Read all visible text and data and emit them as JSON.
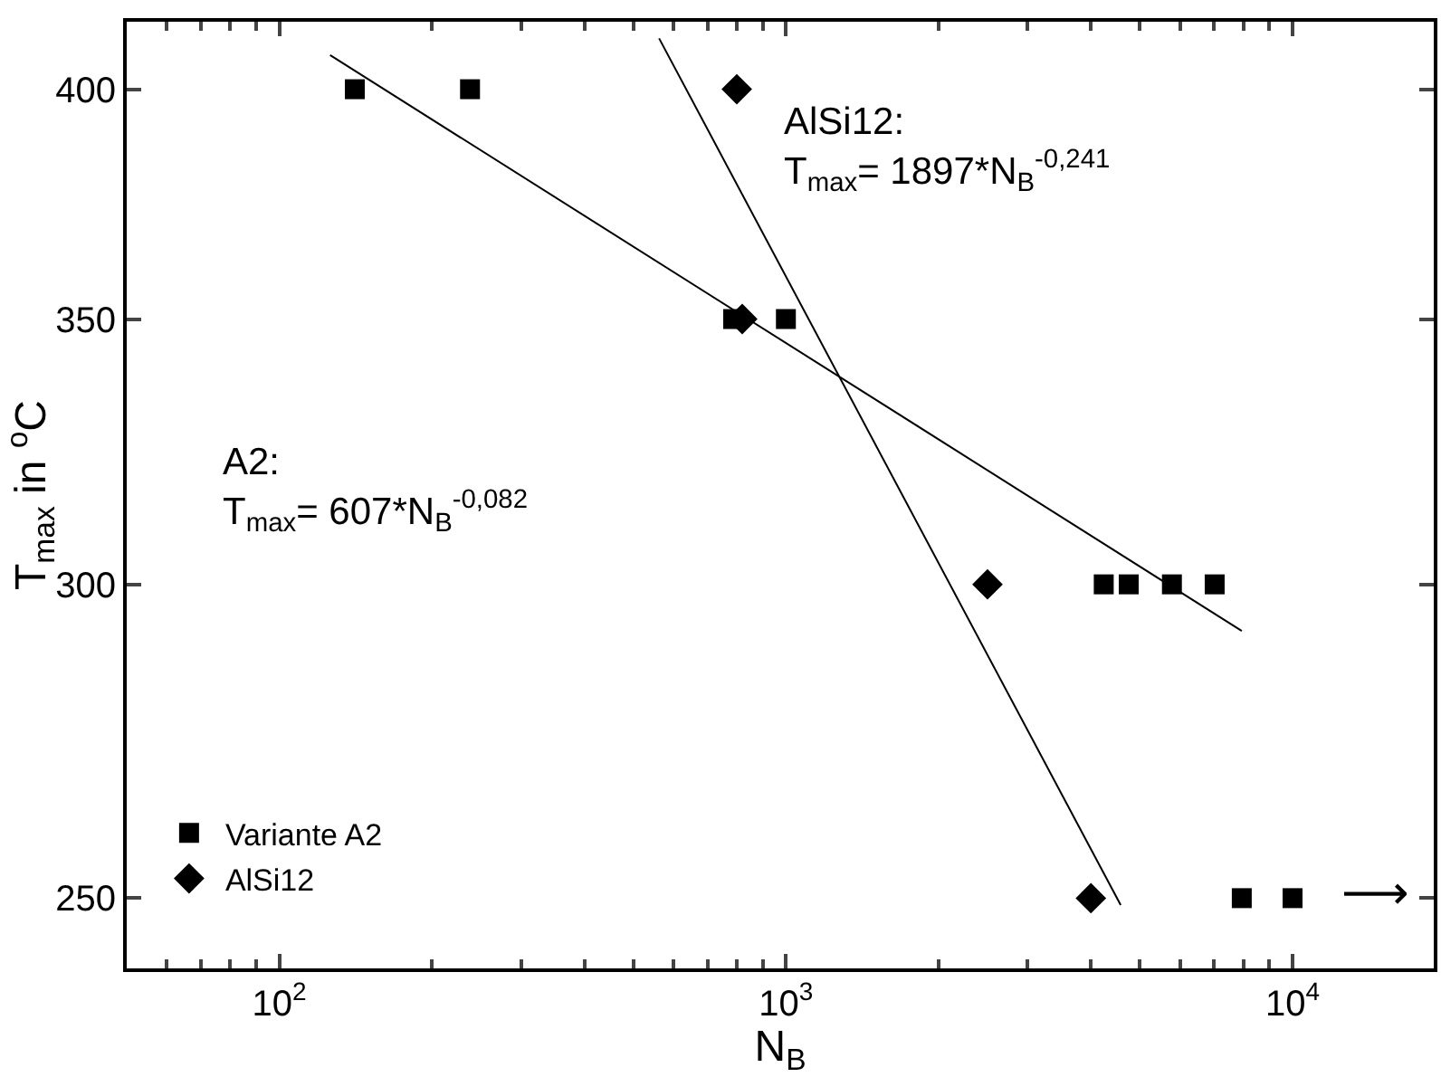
{
  "chart_data": {
    "type": "scatter",
    "xlabel": "N$_{B}$",
    "ylabel": "T$_{max}$ in $^{o}$C",
    "log": "xy",
    "xlim": [
      50,
      19000
    ],
    "ylim": [
      240,
      416
    ],
    "xticks": [
      {
        "value": 100,
        "label": "10$^{2}$"
      },
      {
        "value": 1000,
        "label": "10$^{3}$"
      },
      {
        "value": 10000,
        "label": "10$^{4}$"
      }
    ],
    "yticks": [
      250,
      300,
      350,
      400
    ],
    "legend": "bottom left",
    "series": [
      {
        "name": "Variante A2",
        "marker": "square",
        "color": "#000000",
        "x": [
          141,
          238,
          787,
          1000,
          4240,
          4750,
          5780,
          7020,
          7940,
          10000
        ],
        "values": [
          400,
          400,
          350,
          350,
          300,
          300,
          300,
          300,
          250,
          250
        ]
      },
      {
        "name": "AlSi12",
        "marker": "diamond",
        "color": "#000000",
        "x": [
          800,
          820,
          2500,
          4000
        ],
        "values": [
          400,
          350,
          300,
          250
        ]
      },
      {
        "type": "line",
        "marker": "none",
        "line_style": "solid",
        "color": "#000000",
        "x": [
          126,
          7940
        ],
        "values": [
          408,
          292
        ]
      },
      {
        "type": "line",
        "marker": "none",
        "line_style": "solid",
        "color": "#000000",
        "x": [
          562,
          4580
        ],
        "values": [
          412,
          249
        ]
      }
    ],
    "annotations": [
      "A2:\nT$_{max}$= 607*N$_{B}$$^{-0,082}$",
      "AlSi12:\nT$_{max}$= 1897*N$_{B}$$^{-0,241}$",
      "⟶"
    ]
  }
}
